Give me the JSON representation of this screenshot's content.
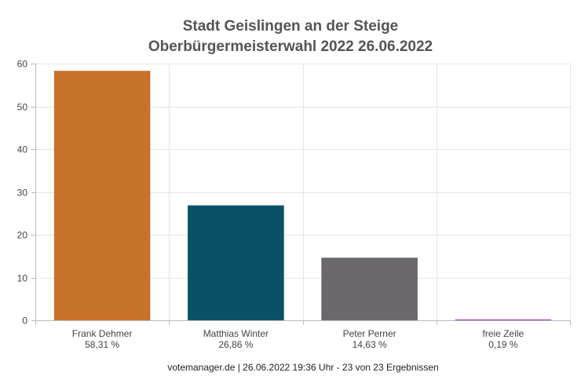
{
  "chart_data": {
    "type": "bar",
    "title": "Stadt Geislingen an der Steige",
    "subtitle": "Oberbürgermeisterwahl 2022 26.06.2022",
    "categories": [
      "Frank Dehmer",
      "Matthias Winter",
      "Peter Perner",
      "freie Zeile"
    ],
    "value_labels": [
      "58,31 %",
      "26,86 %",
      "14,63 %",
      "0,19 %"
    ],
    "values": [
      58.31,
      26.86,
      14.63,
      0.19
    ],
    "colors": [
      "#c8732c",
      "#0b5166",
      "#6a686d",
      "#9b3fb5"
    ],
    "ylim": [
      0,
      60
    ],
    "yticks": [
      0,
      10,
      20,
      30,
      40,
      50,
      60
    ],
    "grid": true,
    "xlabel": "",
    "ylabel": ""
  },
  "footer": "votemanager.de | 26.06.2022 19:36 Uhr - 23 von 23 Ergebnissen"
}
